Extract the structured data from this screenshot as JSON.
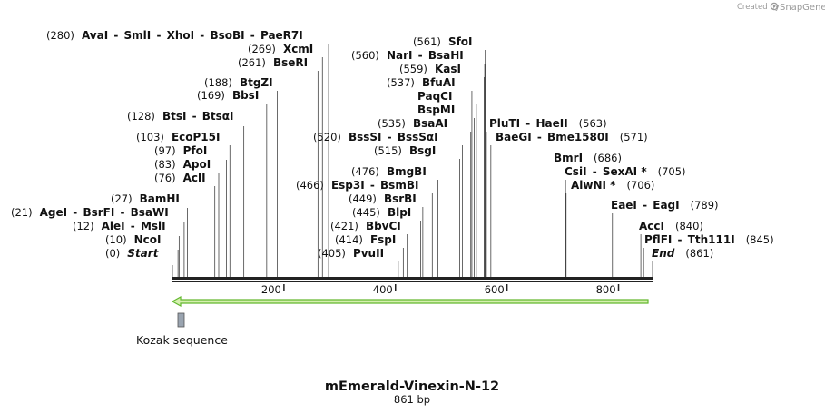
{
  "header": {
    "credit_prefix": "Created by",
    "brand": "SnapGene"
  },
  "map": {
    "title": "mEmerald-Vinexin-N-12",
    "length_label": "861 bp",
    "length_bp": 861,
    "axis_ticks": [
      200,
      400,
      600,
      800
    ],
    "colors": {
      "arrow_fill": "#d6f0b0",
      "arrow_stroke": "#63b82f",
      "feature_box": "#9aa4b0",
      "line": "#333333"
    }
  },
  "sites": [
    {
      "pos_label": "(0)",
      "names": [
        "Start"
      ],
      "bp": 0,
      "italic": true,
      "side": "left"
    },
    {
      "pos_label": "(10)",
      "names": [
        "NcoI"
      ],
      "bp": 10,
      "side": "left"
    },
    {
      "pos_label": "(12)",
      "names": [
        "AleI",
        "MslI"
      ],
      "bp": 12,
      "side": "left"
    },
    {
      "pos_label": "(21)",
      "names": [
        "AgeI",
        "BsrFI",
        "BsaWI"
      ],
      "bp": 21,
      "side": "left"
    },
    {
      "pos_label": "(27)",
      "names": [
        "BamHI"
      ],
      "bp": 27,
      "side": "left"
    },
    {
      "pos_label": "(76)",
      "names": [
        "AclI"
      ],
      "bp": 76,
      "side": "left"
    },
    {
      "pos_label": "(83)",
      "names": [
        "ApoI"
      ],
      "bp": 83,
      "side": "left"
    },
    {
      "pos_label": "(97)",
      "names": [
        "PfoI"
      ],
      "bp": 97,
      "side": "left"
    },
    {
      "pos_label": "(103)",
      "names": [
        "EcoP15I"
      ],
      "bp": 103,
      "side": "left"
    },
    {
      "pos_label": "(128)",
      "names": [
        "BtsI",
        "BtsαI"
      ],
      "bp": 128,
      "side": "left"
    },
    {
      "pos_label": "(169)",
      "names": [
        "BbsI"
      ],
      "bp": 169,
      "side": "left"
    },
    {
      "pos_label": "(188)",
      "names": [
        "BtgZI"
      ],
      "bp": 188,
      "side": "left"
    },
    {
      "pos_label": "(261)",
      "names": [
        "BseRI"
      ],
      "bp": 261,
      "side": "left"
    },
    {
      "pos_label": "(269)",
      "names": [
        "XcmI"
      ],
      "bp": 269,
      "side": "left"
    },
    {
      "pos_label": "(280)",
      "names": [
        "AvaI",
        "SmlI",
        "XhoI",
        "BsoBI",
        "PaeR7I"
      ],
      "bp": 280,
      "side": "left"
    },
    {
      "pos_label": "(405)",
      "names": [
        "PvuII"
      ],
      "bp": 405,
      "side": "left"
    },
    {
      "pos_label": "(414)",
      "names": [
        "FspI"
      ],
      "bp": 414,
      "side": "left"
    },
    {
      "pos_label": "(421)",
      "names": [
        "BbvCI"
      ],
      "bp": 421,
      "side": "left"
    },
    {
      "pos_label": "(445)",
      "names": [
        "BlpI"
      ],
      "bp": 445,
      "side": "left"
    },
    {
      "pos_label": "(449)",
      "names": [
        "BsrBI"
      ],
      "bp": 449,
      "side": "left"
    },
    {
      "pos_label": "(466)",
      "names": [
        "Esp3I",
        "BsmBI"
      ],
      "bp": 466,
      "side": "left"
    },
    {
      "pos_label": "(476)",
      "names": [
        "BmgBI"
      ],
      "bp": 476,
      "side": "left"
    },
    {
      "pos_label": "(515)",
      "names": [
        "BsgI"
      ],
      "bp": 515,
      "side": "left"
    },
    {
      "pos_label": "(520)",
      "names": [
        "BssSI",
        "BssSαI"
      ],
      "bp": 520,
      "side": "left"
    },
    {
      "pos_label": "(535)",
      "names": [
        "BsaAI"
      ],
      "bp": 535,
      "side": "left"
    },
    {
      "pos_label": "",
      "names": [
        "BspMI"
      ],
      "bp": 541,
      "side": "left"
    },
    {
      "pos_label": "",
      "names": [
        "PaqCI"
      ],
      "bp": 545,
      "side": "left"
    },
    {
      "pos_label": "(537)",
      "names": [
        "BfuAI"
      ],
      "bp": 537,
      "side": "left"
    },
    {
      "pos_label": "(559)",
      "names": [
        "KasI"
      ],
      "bp": 559,
      "side": "left"
    },
    {
      "pos_label": "(560)",
      "names": [
        "NarI",
        "BsaHI"
      ],
      "bp": 560,
      "side": "left"
    },
    {
      "pos_label": "(561)",
      "names": [
        "SfoI"
      ],
      "bp": 561,
      "side": "left"
    },
    {
      "pos_label": "(563)",
      "names": [
        "PluTI",
        "HaeII"
      ],
      "bp": 563,
      "side": "right"
    },
    {
      "pos_label": "(571)",
      "names": [
        "BaeGI",
        "Bme1580I"
      ],
      "bp": 571,
      "side": "right"
    },
    {
      "pos_label": "(686)",
      "names": [
        "BmrI"
      ],
      "bp": 686,
      "side": "right"
    },
    {
      "pos_label": "(705)",
      "names": [
        "CsiI",
        "SexAI *"
      ],
      "bp": 705,
      "side": "right"
    },
    {
      "pos_label": "(706)",
      "names": [
        "AlwNI *"
      ],
      "bp": 706,
      "side": "right"
    },
    {
      "pos_label": "(789)",
      "names": [
        "EaeI",
        "EagI"
      ],
      "bp": 789,
      "side": "right"
    },
    {
      "pos_label": "(840)",
      "names": [
        "AccI"
      ],
      "bp": 840,
      "side": "right"
    },
    {
      "pos_label": "(845)",
      "names": [
        "PflFI",
        "Tth111I"
      ],
      "bp": 845,
      "side": "right"
    },
    {
      "pos_label": "(861)",
      "names": [
        "End"
      ],
      "bp": 861,
      "italic": true,
      "side": "right"
    }
  ],
  "features": {
    "kozak_label": "Kozak sequence"
  }
}
